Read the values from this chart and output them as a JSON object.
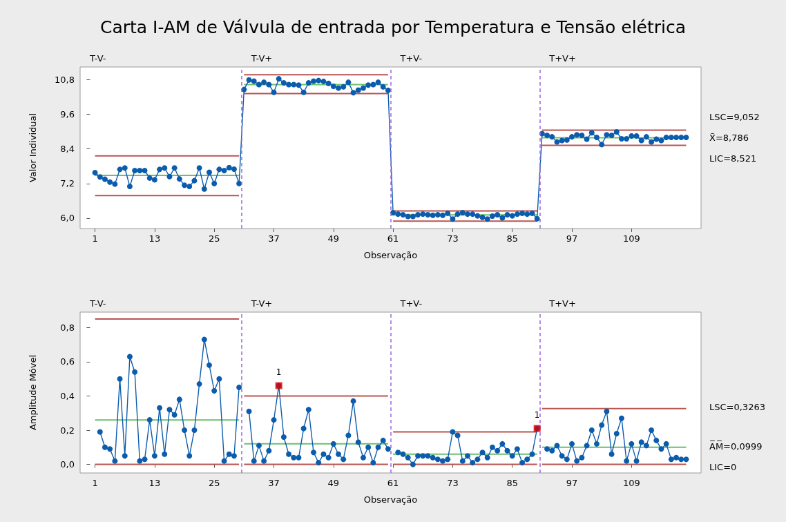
{
  "chart_data": [
    {
      "type": "line",
      "title": "Carta I-AM de Válvula de entrada por Temperatura e Tensão elétrica",
      "xlabel": "Observação",
      "ylabel": "Valor Individual",
      "x": [
        1,
        2,
        3,
        4,
        5,
        6,
        7,
        8,
        9,
        10,
        11,
        12,
        13,
        14,
        15,
        16,
        17,
        18,
        19,
        20,
        21,
        22,
        23,
        24,
        25,
        26,
        27,
        28,
        29,
        30,
        31,
        32,
        33,
        34,
        35,
        36,
        37,
        38,
        39,
        40,
        41,
        42,
        43,
        44,
        45,
        46,
        47,
        48,
        49,
        50,
        51,
        52,
        53,
        54,
        55,
        56,
        57,
        58,
        59,
        60,
        61,
        62,
        63,
        64,
        65,
        66,
        67,
        68,
        69,
        70,
        71,
        72,
        73,
        74,
        75,
        76,
        77,
        78,
        79,
        80,
        81,
        82,
        83,
        84,
        85,
        86,
        87,
        88,
        89,
        90,
        91,
        92,
        93,
        94,
        95,
        96,
        97,
        98,
        99,
        100,
        101,
        102,
        103,
        104,
        105,
        106,
        107,
        108,
        109,
        110,
        111,
        112,
        113,
        114,
        115,
        116,
        117,
        118,
        119,
        120
      ],
      "xlim": [
        -2,
        123
      ],
      "xticks": [
        1,
        13,
        25,
        37,
        49,
        61,
        73,
        85,
        97,
        109
      ],
      "ylim": [
        5.64,
        11.24
      ],
      "yticks": [
        {
          "value": 6.0,
          "label": "6,0"
        },
        {
          "value": 7.2,
          "label": "7,2"
        },
        {
          "value": 8.4,
          "label": "8,4"
        },
        {
          "value": 9.6,
          "label": "9,6"
        },
        {
          "value": 10.8,
          "label": "10,8"
        }
      ],
      "series": [
        {
          "color": "#b85450",
          "marker": "none",
          "x": [
            1,
            30
          ],
          "values": [
            8.16,
            8.16
          ]
        },
        {
          "color": "#6cbf6c",
          "marker": "none",
          "x": [
            1,
            30
          ],
          "values": [
            7.48,
            7.48
          ]
        },
        {
          "color": "#b85450",
          "marker": "none",
          "x": [
            1,
            30
          ],
          "values": [
            6.78,
            6.78
          ]
        },
        {
          "color": "#b85450",
          "marker": "none",
          "x": [
            31,
            60
          ],
          "values": [
            10.97,
            10.97
          ]
        },
        {
          "color": "#6cbf6c",
          "marker": "none",
          "x": [
            31,
            60
          ],
          "values": [
            10.63,
            10.63
          ]
        },
        {
          "color": "#b85450",
          "marker": "none",
          "x": [
            31,
            60
          ],
          "values": [
            10.32,
            10.32
          ]
        },
        {
          "color": "#b85450",
          "marker": "none",
          "x": [
            61,
            90
          ],
          "values": [
            6.25,
            6.25
          ]
        },
        {
          "color": "#6cbf6c",
          "marker": "none",
          "x": [
            61,
            90
          ],
          "values": [
            6.11,
            6.11
          ]
        },
        {
          "color": "#b85450",
          "marker": "none",
          "x": [
            61,
            90
          ],
          "values": [
            5.9,
            5.9
          ]
        },
        {
          "color": "#b85450",
          "marker": "none",
          "x": [
            91,
            120
          ],
          "values": [
            9.052,
            9.052
          ]
        },
        {
          "color": "#6cbf6c",
          "marker": "none",
          "x": [
            91,
            120
          ],
          "values": [
            8.786,
            8.786
          ]
        },
        {
          "color": "#b85450",
          "marker": "none",
          "x": [
            91,
            120
          ],
          "values": [
            8.521,
            8.521
          ]
        },
        {
          "color": "#0b5cad",
          "marker": "circle",
          "values": [
            7.58,
            7.43,
            7.35,
            7.25,
            7.18,
            7.69,
            7.74,
            7.1,
            7.65,
            7.65,
            7.65,
            7.39,
            7.33,
            7.69,
            7.74,
            7.44,
            7.74,
            7.36,
            7.14,
            7.1,
            7.3,
            7.74,
            7.01,
            7.59,
            7.2,
            7.69,
            7.65,
            7.75,
            7.7,
            7.2,
            10.46,
            10.79,
            10.75,
            10.63,
            10.71,
            10.63,
            10.36,
            10.83,
            10.69,
            10.63,
            10.63,
            10.61,
            10.36,
            10.69,
            10.75,
            10.77,
            10.74,
            10.67,
            10.57,
            10.51,
            10.55,
            10.71,
            10.35,
            10.44,
            10.51,
            10.61,
            10.63,
            10.71,
            10.55,
            10.43,
            6.19,
            6.14,
            6.12,
            6.06,
            6.06,
            6.12,
            6.14,
            6.12,
            6.1,
            6.12,
            6.1,
            6.17,
            5.97,
            6.14,
            6.19,
            6.14,
            6.14,
            6.08,
            6.03,
            5.97,
            6.07,
            6.12,
            6.01,
            6.12,
            6.08,
            6.14,
            6.17,
            6.14,
            6.17,
            5.98,
            8.93,
            8.87,
            8.82,
            8.64,
            8.69,
            8.71,
            8.82,
            8.89,
            8.87,
            8.74,
            8.96,
            8.8,
            8.55,
            8.89,
            8.87,
            8.99,
            8.75,
            8.75,
            8.85,
            8.85,
            8.69,
            8.82,
            8.64,
            8.74,
            8.69,
            8.8,
            8.8,
            8.8,
            8.8,
            8.8
          ]
        }
      ],
      "ref_lines": [
        {
          "axis": "x",
          "value": 30.5,
          "color": "#9966dd",
          "line_style": "dashed"
        },
        {
          "axis": "x",
          "value": 60.5,
          "color": "#9966dd",
          "line_style": "dashed"
        },
        {
          "axis": "x",
          "value": 90.5,
          "color": "#9966dd",
          "line_style": "dashed"
        }
      ],
      "annotations": [
        "T-V-",
        "T-V+",
        "T+V-",
        "T+V+",
        "LSC=9,052",
        "X̄=8,786",
        "LIC=8,521"
      ]
    },
    {
      "type": "line",
      "xlabel": "Observação",
      "ylabel": "Amplitude Móvel",
      "xlim": [
        -2,
        123
      ],
      "xticks": [
        1,
        13,
        25,
        37,
        49,
        61,
        73,
        85,
        97,
        109
      ],
      "ylim": [
        -0.05,
        0.89
      ],
      "yticks": [
        {
          "value": 0.0,
          "label": "0,0"
        },
        {
          "value": 0.2,
          "label": "0,2"
        },
        {
          "value": 0.4,
          "label": "0,4"
        },
        {
          "value": 0.6,
          "label": "0,6"
        },
        {
          "value": 0.8,
          "label": "0,8"
        }
      ],
      "series": [
        {
          "color": "#b85450",
          "marker": "none",
          "x": [
            1,
            30
          ],
          "values": [
            0.85,
            0.85
          ]
        },
        {
          "color": "#6cbf6c",
          "marker": "none",
          "x": [
            1,
            30
          ],
          "values": [
            0.26,
            0.26
          ]
        },
        {
          "color": "#b85450",
          "marker": "none",
          "x": [
            1,
            30
          ],
          "values": [
            0,
            0
          ]
        },
        {
          "color": "#b85450",
          "marker": "none",
          "x": [
            31,
            60
          ],
          "values": [
            0.4,
            0.4
          ]
        },
        {
          "color": "#6cbf6c",
          "marker": "none",
          "x": [
            31,
            60
          ],
          "values": [
            0.12,
            0.12
          ]
        },
        {
          "color": "#b85450",
          "marker": "none",
          "x": [
            31,
            60
          ],
          "values": [
            0,
            0
          ]
        },
        {
          "color": "#b85450",
          "marker": "none",
          "x": [
            61,
            90
          ],
          "values": [
            0.19,
            0.19
          ]
        },
        {
          "color": "#6cbf6c",
          "marker": "none",
          "x": [
            61,
            90
          ],
          "values": [
            0.06,
            0.06
          ]
        },
        {
          "color": "#b85450",
          "marker": "none",
          "x": [
            61,
            90
          ],
          "values": [
            0,
            0
          ]
        },
        {
          "color": "#b85450",
          "marker": "none",
          "x": [
            91,
            120
          ],
          "values": [
            0.3263,
            0.3263
          ]
        },
        {
          "color": "#6cbf6c",
          "marker": "none",
          "x": [
            91,
            120
          ],
          "values": [
            0.0999,
            0.0999
          ]
        },
        {
          "color": "#b85450",
          "marker": "none",
          "x": [
            91,
            120
          ],
          "values": [
            0,
            0
          ]
        },
        {
          "color": "#0b5cad",
          "marker": "circle",
          "x": [
            2,
            3,
            4,
            5,
            6,
            7,
            8,
            9,
            10,
            11,
            12,
            13,
            14,
            15,
            16,
            17,
            18,
            19,
            20,
            21,
            22,
            23,
            24,
            25,
            26,
            27,
            28,
            29,
            30,
            31,
            32,
            33,
            34,
            35,
            36,
            37,
            38,
            39,
            40,
            41,
            42,
            43,
            44,
            45,
            46,
            47,
            48,
            49,
            50,
            51,
            52,
            53,
            54,
            55,
            56,
            57,
            58,
            59,
            60,
            61,
            62,
            63,
            64,
            65,
            66,
            67,
            68,
            69,
            70,
            71,
            72,
            73,
            74,
            75,
            76,
            77,
            78,
            79,
            80,
            81,
            82,
            83,
            84,
            85,
            86,
            87,
            88,
            89,
            90,
            91,
            92,
            93,
            94,
            95,
            96,
            97,
            98,
            99,
            100,
            101,
            102,
            103,
            104,
            105,
            106,
            107,
            108,
            109,
            110,
            111,
            112,
            113,
            114,
            115,
            116,
            117,
            118,
            119,
            120
          ],
          "values": [
            0.19,
            0.1,
            0.09,
            0.02,
            0.5,
            0.05,
            0.63,
            0.54,
            0.02,
            0.03,
            0.26,
            0.05,
            0.33,
            0.06,
            0.32,
            0.29,
            0.38,
            0.2,
            0.05,
            0.2,
            0.47,
            0.73,
            0.58,
            0.43,
            0.5,
            0.02,
            0.06,
            0.05,
            0.45,
            null,
            0.31,
            0.02,
            0.11,
            0.02,
            0.08,
            0.26,
            0.46,
            0.16,
            0.06,
            0.04,
            0.04,
            0.21,
            0.32,
            0.07,
            0.01,
            0.06,
            0.04,
            0.12,
            0.06,
            0.03,
            0.17,
            0.37,
            0.13,
            0.04,
            0.1,
            0.01,
            0.1,
            0.14,
            0.09,
            null,
            0.07,
            0.06,
            0.04,
            0.0,
            0.05,
            0.05,
            0.05,
            0.04,
            0.03,
            0.02,
            0.03,
            0.19,
            0.17,
            0.02,
            0.05,
            0.01,
            0.03,
            0.07,
            0.04,
            0.1,
            0.08,
            0.12,
            0.08,
            0.05,
            0.09,
            0.01,
            0.03,
            0.06,
            0.21,
            null,
            0.09,
            0.08,
            0.11,
            0.05,
            0.03,
            0.12,
            0.02,
            0.04,
            0.11,
            0.2,
            0.12,
            0.23,
            0.31,
            0.06,
            0.18,
            0.27,
            0.02,
            0.12,
            0.02,
            0.13,
            0.11,
            0.2,
            0.14,
            0.09,
            0.12,
            0.03,
            0.04,
            0.03,
            0.03
          ]
        },
        {
          "type": "scatter",
          "color": "#dd0000",
          "marker": "square",
          "x": [
            38,
            90
          ],
          "values": [
            0.46,
            0.21
          ]
        }
      ],
      "ref_lines": [
        {
          "axis": "x",
          "value": 30.5,
          "color": "#9966dd",
          "line_style": "dashed"
        },
        {
          "axis": "x",
          "value": 60.5,
          "color": "#9966dd",
          "line_style": "dashed"
        },
        {
          "axis": "x",
          "value": 90.5,
          "color": "#9966dd",
          "line_style": "dashed"
        }
      ],
      "annotations": [
        "T-V-",
        "T-V+",
        "T+V-",
        "T+V+",
        {
          "text": "1",
          "x": 38,
          "y": 0.46
        },
        {
          "text": "1",
          "x": 90,
          "y": 0.21
        },
        "LSC=0,3263",
        "A̅M̅=0,0999",
        "LIC=0"
      ]
    }
  ]
}
